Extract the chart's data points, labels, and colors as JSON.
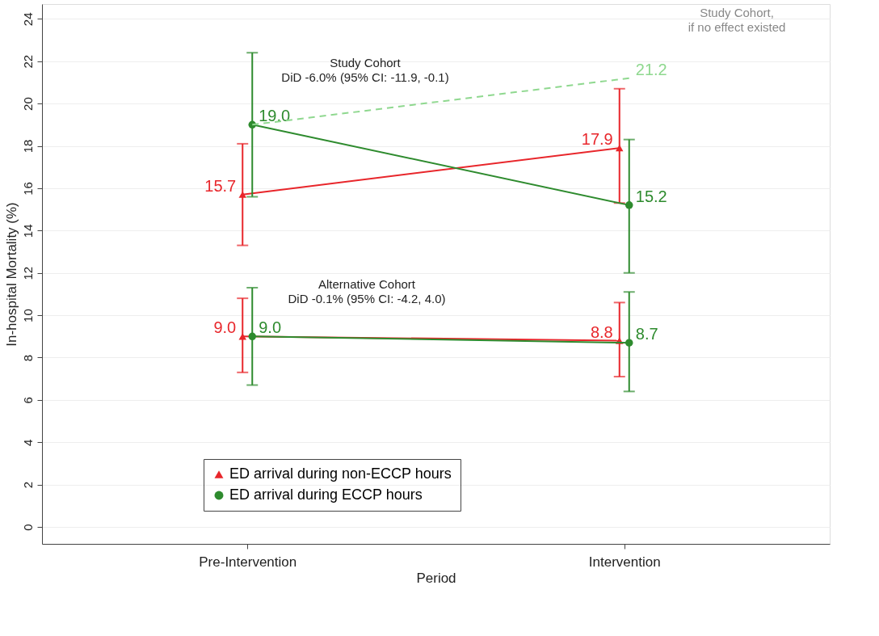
{
  "chart_data": {
    "type": "line",
    "xlabel": "Period",
    "ylabel": "In-hospital Mortality (%)",
    "categories": [
      "Pre-Intervention",
      "Intervention"
    ],
    "ylim": [
      -0.8,
      24.7
    ],
    "yticks": [
      0,
      2,
      4,
      6,
      8,
      10,
      12,
      14,
      16,
      18,
      20,
      22,
      24
    ],
    "grid": "y",
    "legend": "bottom",
    "series": [
      {
        "name": "ED arrival during non-ECCP hours",
        "color": "#e8262b",
        "marker": "triangle",
        "values": [
          15.7,
          17.9
        ],
        "errors": [
          [
            13.3,
            18.1
          ],
          [
            15.3,
            20.7
          ]
        ],
        "value_labels": [
          "15.7",
          "17.9"
        ]
      },
      {
        "name": "ED arrival during ECCP hours",
        "color": "#2e8b2e",
        "marker": "circle",
        "values": [
          19.0,
          15.2
        ],
        "errors": [
          [
            15.6,
            22.4
          ],
          [
            12.0,
            18.3
          ]
        ],
        "value_labels": [
          "19.0",
          "15.2"
        ]
      },
      {
        "color": "#e8262b",
        "marker": "triangle",
        "values": [
          9.0,
          8.8
        ],
        "errors": [
          [
            7.3,
            10.8
          ],
          [
            7.1,
            10.6
          ]
        ],
        "value_labels": [
          "9.0",
          "8.8"
        ]
      },
      {
        "color": "#2e8b2e",
        "marker": "circle",
        "values": [
          9.0,
          8.7
        ],
        "errors": [
          [
            6.7,
            11.3
          ],
          [
            6.4,
            11.1
          ]
        ],
        "value_labels": [
          "9.0",
          "8.7"
        ]
      },
      {
        "color": "#8fd88f",
        "marker": "none",
        "line_style": "dashed",
        "values": [
          19.0,
          21.2
        ],
        "value_labels": [
          null,
          "21.2"
        ]
      }
    ],
    "annotations": [
      "Study Cohort\nDiD -6.0% (95% CI: -11.9, -0.1)",
      "Alternative Cohort\nDiD -0.1% (95% CI: -4.2, 4.0)",
      "Study Cohort,\nif no effect existed"
    ]
  }
}
